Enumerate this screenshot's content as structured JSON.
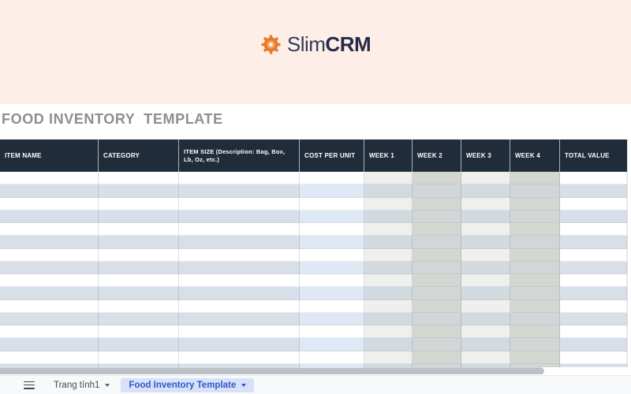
{
  "banner": {
    "brand": {
      "icon": "gear-icon",
      "name_regular": "Slim",
      "name_bold": "CRM"
    }
  },
  "page": {
    "title": "FOOD INVENTORY  TEMPLATE"
  },
  "table": {
    "columns": [
      "ITEM NAME",
      "CATEGORY",
      "ITEM SIZE (Description: Bag, Box, Lb, Oz, etc.)",
      "COST PER UNIT",
      "WEEK 1",
      "WEEK 2",
      "WEEK 3",
      "WEEK 4",
      "TOTAL VALUE"
    ],
    "row_count": 16,
    "rows_are_empty": true
  },
  "tabbar": {
    "tabs": [
      {
        "label": "Trang tính1",
        "active": false
      },
      {
        "label": "Food Inventory Template",
        "active": true
      }
    ]
  },
  "colors": {
    "banner_bg": "#fdeee7",
    "logo_orange": "#e87a2d",
    "logo_text": "#252c4a",
    "title_gray": "#8e8e8e",
    "header_bg": "#212c3b",
    "header_text": "#ffffff",
    "band_blue": "#d8dfe8",
    "cost_column_blue": "#dfe9f6",
    "week_odd_fill": "#eff0ee",
    "week_even_fill": "#d4d6d2",
    "active_tab_bg": "#d7e1f8",
    "active_tab_text": "#3257c5"
  }
}
